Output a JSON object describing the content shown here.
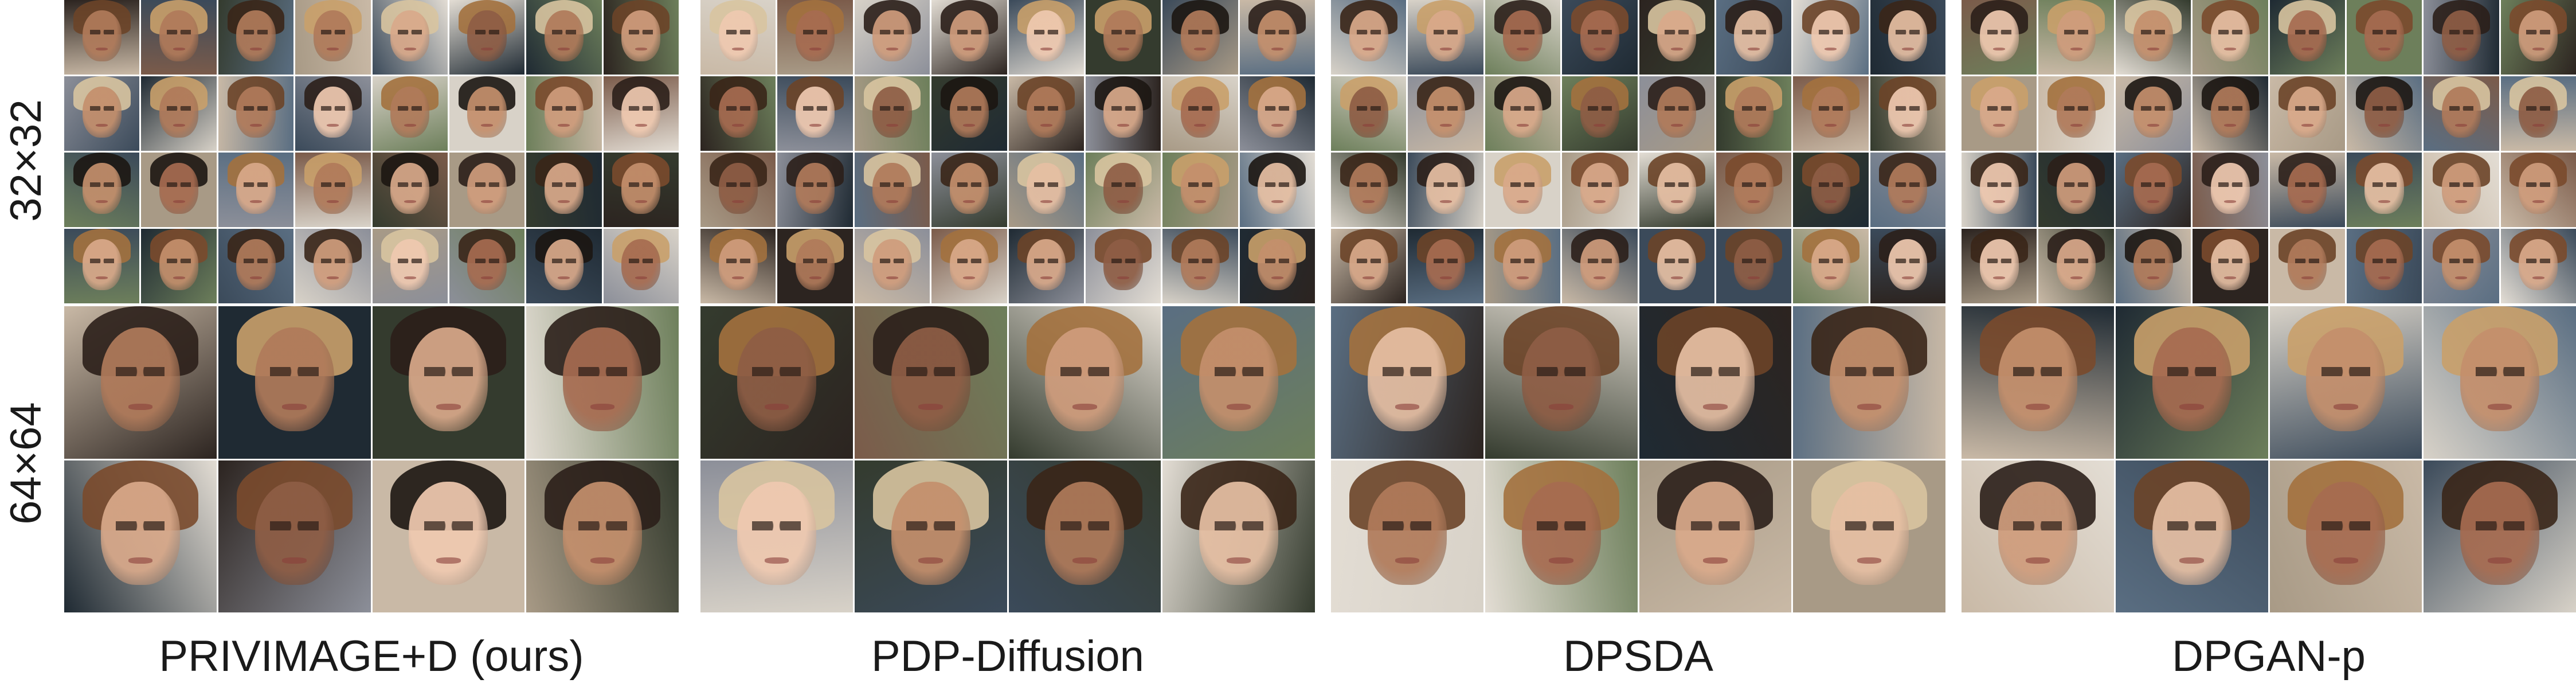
{
  "row_labels": {
    "res32": "32×32",
    "res64": "64×64"
  },
  "panels": [
    {
      "caption": "PRIVIMAGE+D (ours)"
    },
    {
      "caption": "PDP-Diffusion"
    },
    {
      "caption": "DPSDA"
    },
    {
      "caption": "DPGAN-p"
    }
  ]
}
